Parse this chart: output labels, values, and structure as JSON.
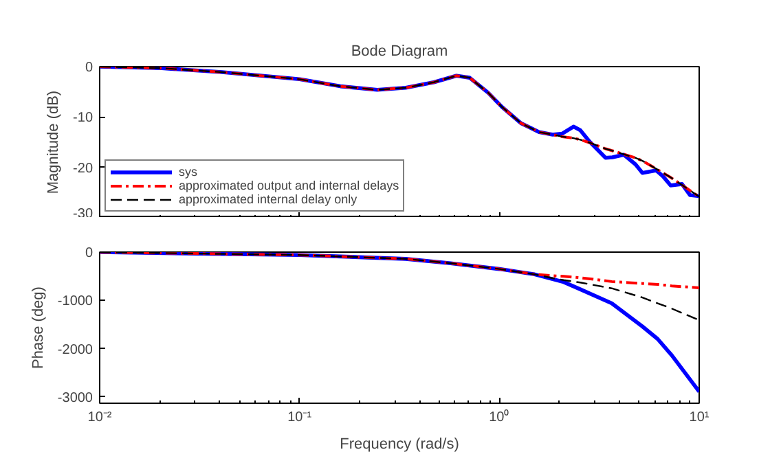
{
  "chart_data": [
    {
      "type": "line",
      "title": "Bode Diagram",
      "ylabel": "Magnitude (dB)",
      "log": "x",
      "xlim": [
        0.01,
        10
      ],
      "xticks": [
        0.01,
        0.1,
        1,
        10
      ],
      "ylim": [
        -30,
        0
      ],
      "yticks": [
        -30,
        -20,
        -10,
        0
      ],
      "tick_labels": "y",
      "grid": false,
      "legend": "bottom left",
      "x": [
        0.01,
        0.0204,
        0.041,
        0.1,
        0.16,
        0.245,
        0.34,
        0.47,
        0.61,
        0.71,
        0.88,
        1.03,
        1.28,
        1.58,
        1.85,
        2.06,
        2.35,
        2.54,
        2.83,
        3.4,
        3.68,
        4.2,
        4.8,
        5.2,
        6.1,
        6.6,
        7.2,
        8.2,
        9.0,
        10
      ],
      "series": [
        {
          "name": "sys",
          "color": "#0000ff",
          "line_style": "solid",
          "values": [
            0,
            -0.3,
            -1.1,
            -2.5,
            -3.9,
            -4.6,
            -4.2,
            -3.1,
            -1.8,
            -2.2,
            -5.2,
            -8.0,
            -11.2,
            -13.0,
            -13.5,
            -13.3,
            -11.9,
            -12.6,
            -14.9,
            -18.1,
            -18.0,
            -17.5,
            -19.4,
            -21.1,
            -20.6,
            -21.8,
            -23.6,
            -23.3,
            -25.5,
            -25.7
          ]
        },
        {
          "name": "approximated output and internal delays",
          "color": "#ff0000",
          "line_style": "dashdot",
          "values": [
            0,
            -0.3,
            -1.1,
            -2.5,
            -3.9,
            -4.6,
            -4.2,
            -3.1,
            -1.8,
            -2.2,
            -5.2,
            -8.0,
            -11.2,
            -13.0,
            -13.5,
            -13.9,
            -14.2,
            -14.5,
            -15.1,
            -16.3,
            -16.7,
            -17.4,
            -18.1,
            -18.7,
            -20.3,
            -21.1,
            -22.0,
            -23.5,
            -24.6,
            -25.8
          ]
        },
        {
          "name": "approximated internal delay only",
          "color": "#000000",
          "line_style": "dashed",
          "values": [
            0,
            -0.3,
            -1.1,
            -2.5,
            -3.9,
            -4.6,
            -4.2,
            -3.1,
            -1.8,
            -2.2,
            -5.2,
            -8.0,
            -11.2,
            -13.0,
            -13.5,
            -13.9,
            -14.2,
            -14.5,
            -15.1,
            -16.3,
            -16.7,
            -17.4,
            -18.1,
            -18.7,
            -20.3,
            -21.1,
            -22.0,
            -23.5,
            -24.6,
            -25.8
          ]
        }
      ]
    },
    {
      "type": "line",
      "ylabel": "Phase (deg)",
      "xlabel": "Frequency (rad/s)",
      "log": "x",
      "xlim": [
        0.01,
        10
      ],
      "xticks": [
        {
          "value": 0.01,
          "label": "10⁻²"
        },
        {
          "value": 0.1,
          "label": "10⁻¹"
        },
        {
          "value": 1,
          "label": "10⁰"
        },
        {
          "value": 10,
          "label": "10¹"
        }
      ],
      "ylim": [
        -3130,
        0
      ],
      "yticks": [
        -3000,
        -2000,
        -1000,
        0
      ],
      "grid": false,
      "legend": false,
      "x": [
        0.01,
        0.1,
        0.34,
        0.57,
        1,
        1.5,
        1.85,
        2.1,
        2.54,
        3.65,
        5.2,
        6.2,
        7.3,
        10
      ],
      "series": [
        {
          "color": "#0000ff",
          "line_style": "solid",
          "values": [
            0,
            -60,
            -140,
            -230,
            -350,
            -460,
            -560,
            -620,
            -770,
            -1060,
            -1540,
            -1800,
            -2140,
            -2890
          ]
        },
        {
          "color": "#ff0000",
          "line_style": "dashdot",
          "values": [
            0,
            -60,
            -140,
            -230,
            -350,
            -460,
            -490,
            -500,
            -530,
            -610,
            -650,
            -670,
            -700,
            -740
          ]
        },
        {
          "color": "#000000",
          "line_style": "dashed",
          "values": [
            0,
            -60,
            -140,
            -230,
            -350,
            -460,
            -540,
            -580,
            -630,
            -750,
            -940,
            -1060,
            -1170,
            -1410
          ]
        }
      ]
    }
  ]
}
